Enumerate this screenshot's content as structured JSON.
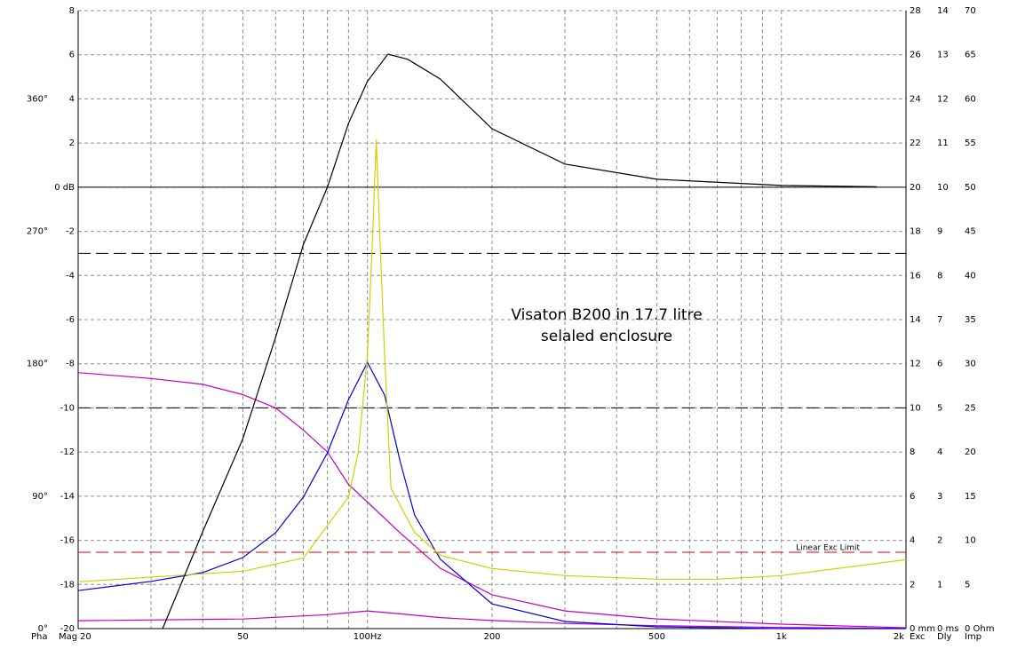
{
  "chart_data": {
    "type": "line",
    "annotation": [
      "Visaton B200 in 17.7 litre",
      "selaled enclosure"
    ],
    "xlog": true,
    "xlim": [
      20,
      2000
    ],
    "xticks": [
      20,
      50,
      {
        "value": 100,
        "label": "100Hz"
      },
      200,
      500,
      {
        "value": 1000,
        "label": "1k"
      },
      {
        "value": 2000,
        "label": "2k"
      }
    ],
    "xgrid": [
      30,
      40,
      60,
      70,
      80,
      90,
      300,
      400,
      600,
      700,
      800,
      900
    ],
    "grid": true,
    "axes": {
      "mag": {
        "label": "Mag",
        "color": "#808080",
        "side": "left",
        "ylim": [
          -20,
          8
        ],
        "yticks": [
          -20,
          -18,
          -16,
          -14,
          -12,
          -10,
          -8,
          -6,
          -4,
          -2,
          {
            "value": 0,
            "label": "0 dB"
          },
          2,
          4,
          6,
          8
        ]
      },
      "pha": {
        "label": "Pha",
        "color": "#c000c0",
        "side": "left",
        "ylim": [
          0,
          420
        ],
        "yticks": [
          {
            "value": 0,
            "label": "0°"
          },
          {
            "value": 90,
            "label": "90°"
          },
          {
            "value": 180,
            "label": "180°"
          },
          {
            "value": 270,
            "label": "270°"
          },
          {
            "value": 360,
            "label": "360°"
          }
        ]
      },
      "exc": {
        "label": "Exc",
        "color": "#e00000",
        "side": "right",
        "ylim": [
          0,
          28
        ],
        "yticks": [
          {
            "value": 0,
            "label": "0 mm"
          },
          2,
          4,
          6,
          8,
          10,
          12,
          14,
          16,
          18,
          20,
          22,
          24,
          26,
          28
        ]
      },
      "dly": {
        "label": "Dly",
        "color": "#0000e0",
        "side": "right",
        "ylim": [
          0,
          14
        ],
        "yticks": [
          {
            "value": 0,
            "label": "0 ms"
          },
          1,
          2,
          3,
          4,
          5,
          6,
          7,
          8,
          9,
          10,
          11,
          12,
          13,
          14
        ]
      },
      "imp": {
        "label": "Imp",
        "color": "#d0d000",
        "side": "right",
        "ylim": [
          0,
          70
        ],
        "yticks": [
          {
            "value": 0,
            "label": "0 Ohm"
          },
          5,
          10,
          15,
          20,
          25,
          30,
          35,
          40,
          45,
          50,
          55,
          60,
          65,
          70
        ]
      }
    },
    "hlines": [
      {
        "axis": "mag",
        "value": 0,
        "color": "#000000",
        "style": "solid"
      },
      {
        "axis": "mag",
        "value": -3,
        "color": "#000000",
        "style": "dashed"
      },
      {
        "axis": "mag",
        "value": -10,
        "color": "#000000",
        "style": "dashed"
      },
      {
        "axis": "exc",
        "value": 3.46,
        "color": "#e00000",
        "style": "dashed",
        "label": "Linear Exc Limit"
      }
    ],
    "series": [
      {
        "axis": "pha",
        "color": "#c000c0",
        "x": [
          20,
          30,
          40,
          50,
          60,
          70,
          80,
          90,
          100,
          120,
          150,
          200,
          300,
          500,
          1000,
          2000
        ],
        "values": [
          174,
          170,
          166,
          159,
          150,
          135,
          120,
          98,
          86,
          65,
          41,
          23,
          12,
          6.6,
          3,
          0.6
        ]
      },
      {
        "axis": "pha",
        "color": "#c000c0",
        "x": [
          20,
          50,
          80,
          100,
          120,
          150,
          200,
          300,
          500,
          1000,
          2000
        ],
        "values": [
          5.4,
          6.5,
          9.5,
          12,
          10,
          7.5,
          5.5,
          3.5,
          2,
          0.8,
          0.2
        ]
      },
      {
        "axis": "dly",
        "color": "#0000e0",
        "x": [
          20,
          30,
          40,
          50,
          60,
          70,
          80,
          90,
          100,
          110,
          120,
          130,
          150,
          200,
          300,
          500,
          1000,
          2000
        ],
        "values": [
          0.86,
          1.07,
          1.27,
          1.61,
          2.17,
          2.98,
          3.98,
          5.19,
          6.03,
          5.29,
          3.78,
          2.57,
          1.57,
          0.56,
          0.16,
          0.04,
          0,
          0
        ]
      },
      {
        "axis": "imp",
        "color": "#d0d000",
        "x": [
          20,
          50,
          70,
          90,
          95,
          100,
          103,
          105,
          107,
          110,
          114,
          130,
          150,
          200,
          300,
          500,
          700,
          1000,
          2000
        ],
        "values": [
          5.3,
          6.5,
          8,
          14.9,
          20,
          31,
          45,
          55.4,
          45,
          31,
          15.9,
          10.9,
          8.3,
          6.8,
          6,
          5.6,
          5.6,
          6,
          7.8
        ]
      },
      {
        "axis": "mag",
        "color": "#000000",
        "x": [
          32,
          40,
          50,
          60,
          70,
          80,
          90,
          100,
          112,
          125,
          150,
          200,
          300,
          500,
          1000,
          1700
        ],
        "values": [
          -20,
          -15.6,
          -11.4,
          -6.8,
          -2.6,
          0,
          2.9,
          4.8,
          6.03,
          5.8,
          4.9,
          2.65,
          1.05,
          0.36,
          0.08,
          0.02
        ]
      }
    ]
  }
}
